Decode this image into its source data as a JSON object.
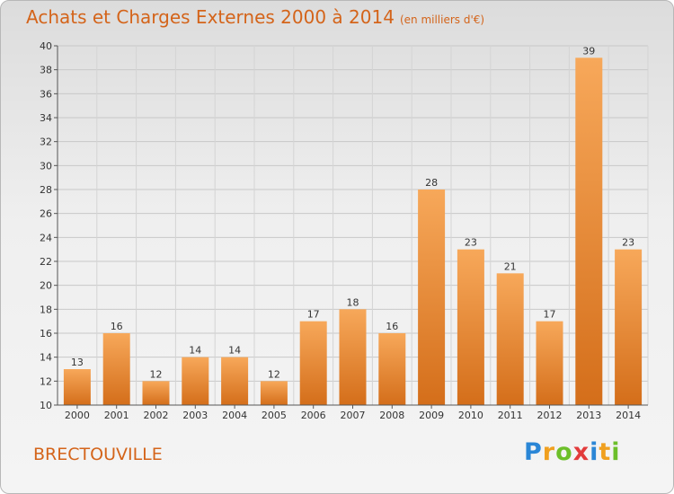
{
  "header": {
    "title": "Achats et Charges Externes 2000 à 2014",
    "subtitle": "(en milliers d'€)"
  },
  "footer": {
    "location": "BRECTOUVILLE",
    "logo": "Proxiti"
  },
  "colors": {
    "accent": "#d4641a",
    "bar_top": "#f7a85a",
    "bar_bottom": "#d46e1a"
  },
  "chart_data": {
    "type": "bar",
    "title": "Achats et Charges Externes 2000 à 2014",
    "subtitle": "(en milliers d'€)",
    "xlabel": "",
    "ylabel": "",
    "categories": [
      "2000",
      "2001",
      "2002",
      "2003",
      "2004",
      "2005",
      "2006",
      "2007",
      "2008",
      "2009",
      "2010",
      "2011",
      "2012",
      "2013",
      "2014"
    ],
    "values": [
      13,
      16,
      12,
      14,
      14,
      12,
      17,
      18,
      16,
      28,
      23,
      21,
      17,
      39,
      23
    ],
    "ylim": [
      10,
      40
    ],
    "yticks": [
      10,
      12,
      14,
      16,
      18,
      20,
      22,
      24,
      26,
      28,
      30,
      32,
      34,
      36,
      38,
      40
    ],
    "grid": true,
    "data_labels": true
  }
}
